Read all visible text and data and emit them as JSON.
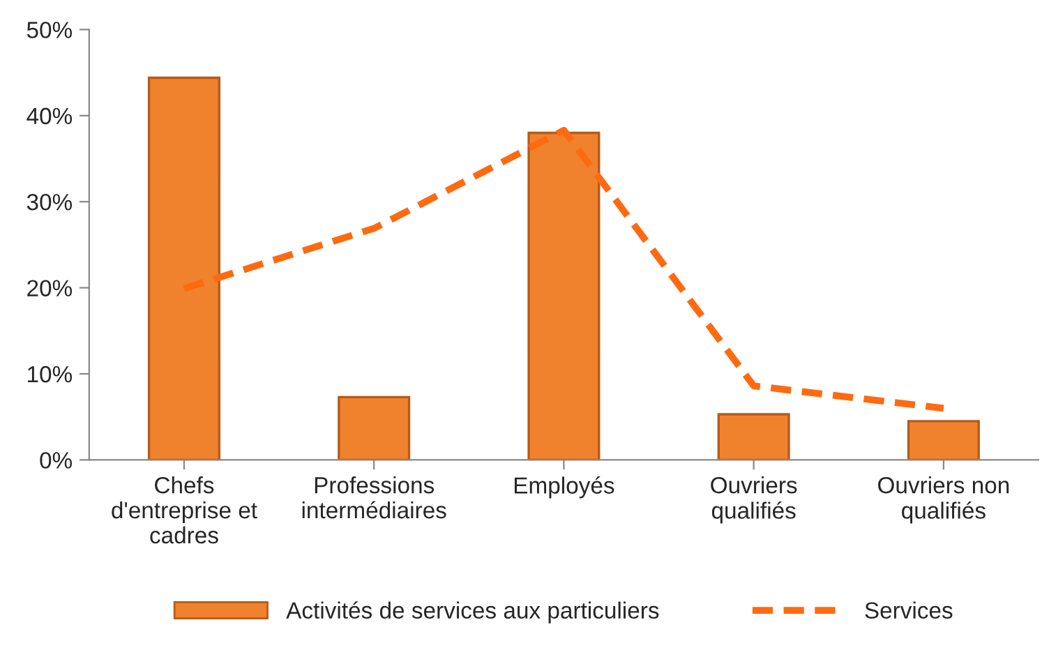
{
  "chart_data": {
    "type": "bar",
    "categories": [
      "Chefs\nd'entreprise et\ncadres",
      "Professions\nintermédiaires",
      "Employés",
      "Ouvriers\nqualifiés",
      "Ouvriers non\nqualifiés"
    ],
    "series": [
      {
        "name": "Activités de services aux particuliers",
        "color": "#f0822e",
        "values": [
          44.4,
          7.3,
          38,
          5.3,
          4.5
        ]
      },
      {
        "name": "Services",
        "type": "line",
        "line_style": "dashed",
        "marker": "none",
        "color": "#ff6a10",
        "values": [
          19.9,
          26.9,
          38.3,
          8.6,
          6
        ]
      }
    ],
    "ylim": [
      0,
      50
    ],
    "yticks": [
      {
        "value": 0,
        "label": "0%"
      },
      {
        "value": 10,
        "label": "10%"
      },
      {
        "value": 20,
        "label": "20%"
      },
      {
        "value": 30,
        "label": "30%"
      },
      {
        "value": 40,
        "label": "40%"
      },
      {
        "value": 50,
        "label": "50%"
      }
    ],
    "grid": false,
    "legend": "bottom"
  }
}
